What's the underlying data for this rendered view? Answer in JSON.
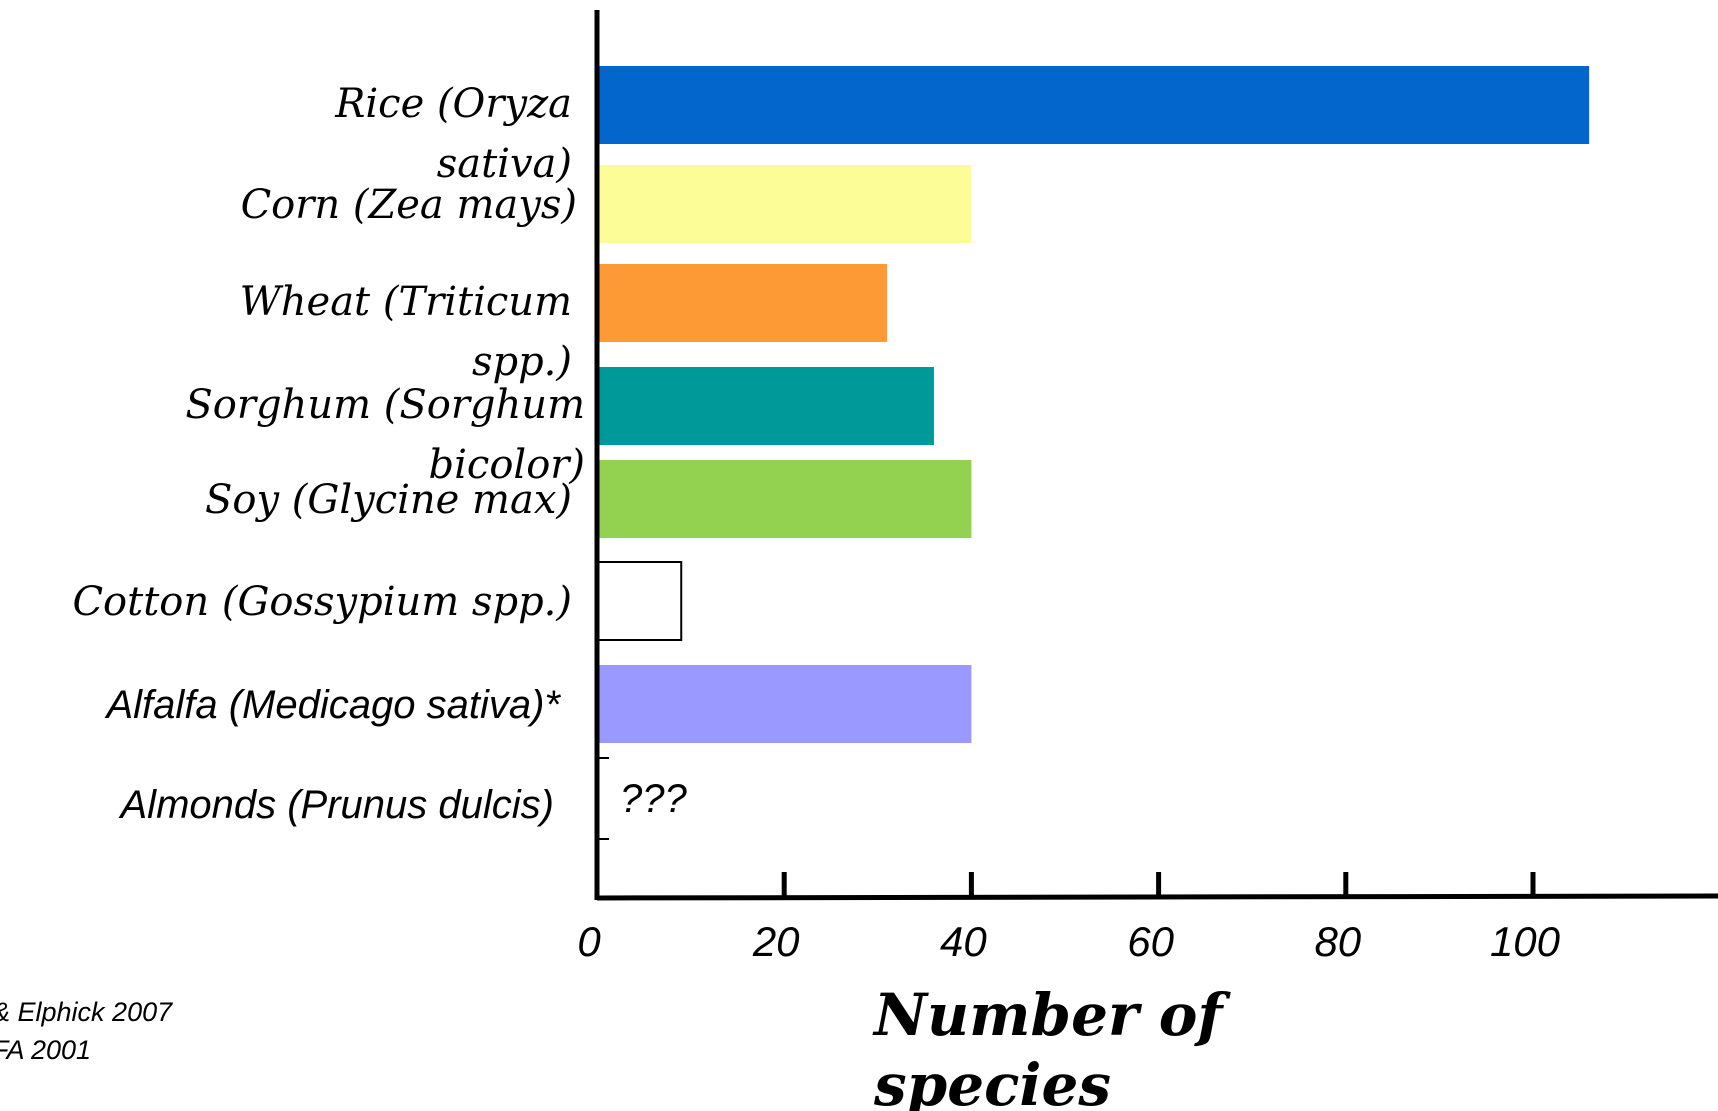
{
  "chart_data": {
    "type": "bar",
    "orientation": "horizontal",
    "categories": [
      "Rice (Oryza sativa)",
      "Corn (Zea mays)",
      "Wheat (Triticum spp.)",
      "Sorghum (Sorghum bicolor)",
      "Soy (Glycine max)",
      "Cotton (Gossypium spp.)",
      "Alfalfa (Medicago sativa)*",
      "Almonds (Prunus dulcis)"
    ],
    "values": [
      106,
      40,
      31,
      36,
      40,
      9,
      40,
      null
    ],
    "colors": [
      "#0366cc",
      "#fdfd98",
      "#fe9a36",
      "#00999a",
      "#93d150",
      "#ffffff",
      "#9999ff",
      "#ffffff"
    ],
    "label_lines": [
      [
        "Rice (Oryza",
        "sativa)"
      ],
      [
        "Corn (Zea mays)"
      ],
      [
        "Wheat (Triticum",
        "spp.)"
      ],
      [
        "Sorghum (Sorghum",
        "bicolor)"
      ],
      [
        "Soy (Glycine max)"
      ],
      [
        "Cotton (Gossypium spp.)"
      ],
      [
        "Alfalfa (Medicago sativa)*"
      ],
      [
        "Almonds (Prunus dulcis)"
      ]
    ],
    "x_ticks": [
      "0",
      "20",
      "40",
      "60",
      "80",
      "100"
    ],
    "xlim": [
      0,
      120
    ],
    "xlabel_lines": [
      "Number of",
      "species"
    ],
    "annotations": [
      "???"
    ],
    "grid": false,
    "legend": "none"
  },
  "source_lines": [
    "& Elphick 2007",
    "FA 2001"
  ]
}
